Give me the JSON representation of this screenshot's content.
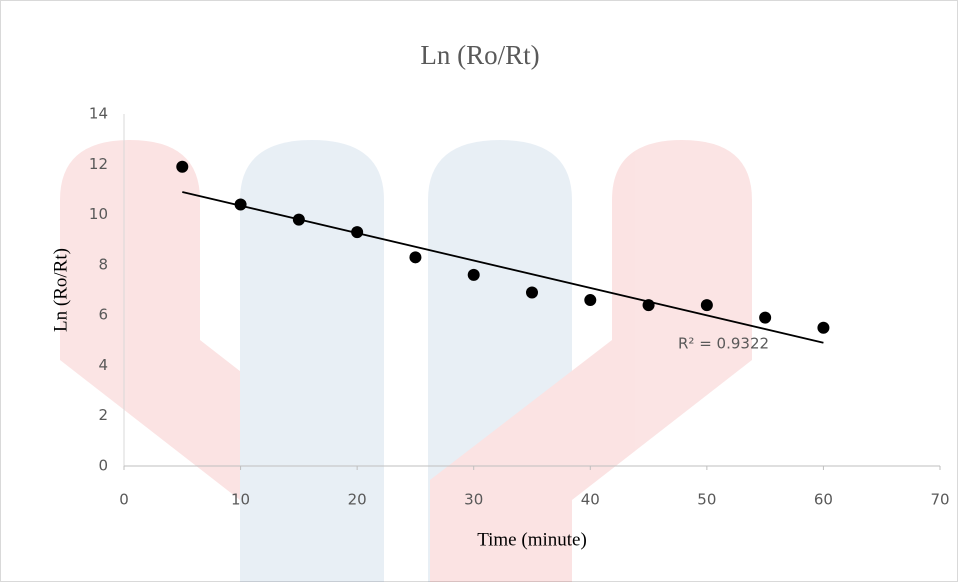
{
  "chart_data": {
    "type": "scatter",
    "title": "Ln (Ro/Rt)",
    "x_label": "Time (minute)",
    "y_label": "Ln (Ro/Rt)",
    "x": [
      5,
      10,
      15,
      20,
      25,
      30,
      35,
      40,
      45,
      50,
      55,
      60
    ],
    "values": [
      11.9,
      10.4,
      9.8,
      9.3,
      8.3,
      7.6,
      6.9,
      6.6,
      6.4,
      6.4,
      5.9,
      5.5
    ],
    "color": "#000000",
    "trendline": {
      "x": [
        5,
        60
      ],
      "y": [
        10.9,
        4.9
      ],
      "color": "#000000"
    },
    "annotation": "R² = 0.9322",
    "xlim": [
      0,
      70
    ],
    "xticks": [
      0,
      10,
      20,
      30,
      40,
      50,
      60,
      70
    ],
    "ylim": [
      0,
      14
    ],
    "yticks": [
      0,
      2,
      4,
      6,
      8,
      10,
      12,
      14
    ],
    "grid": false
  }
}
